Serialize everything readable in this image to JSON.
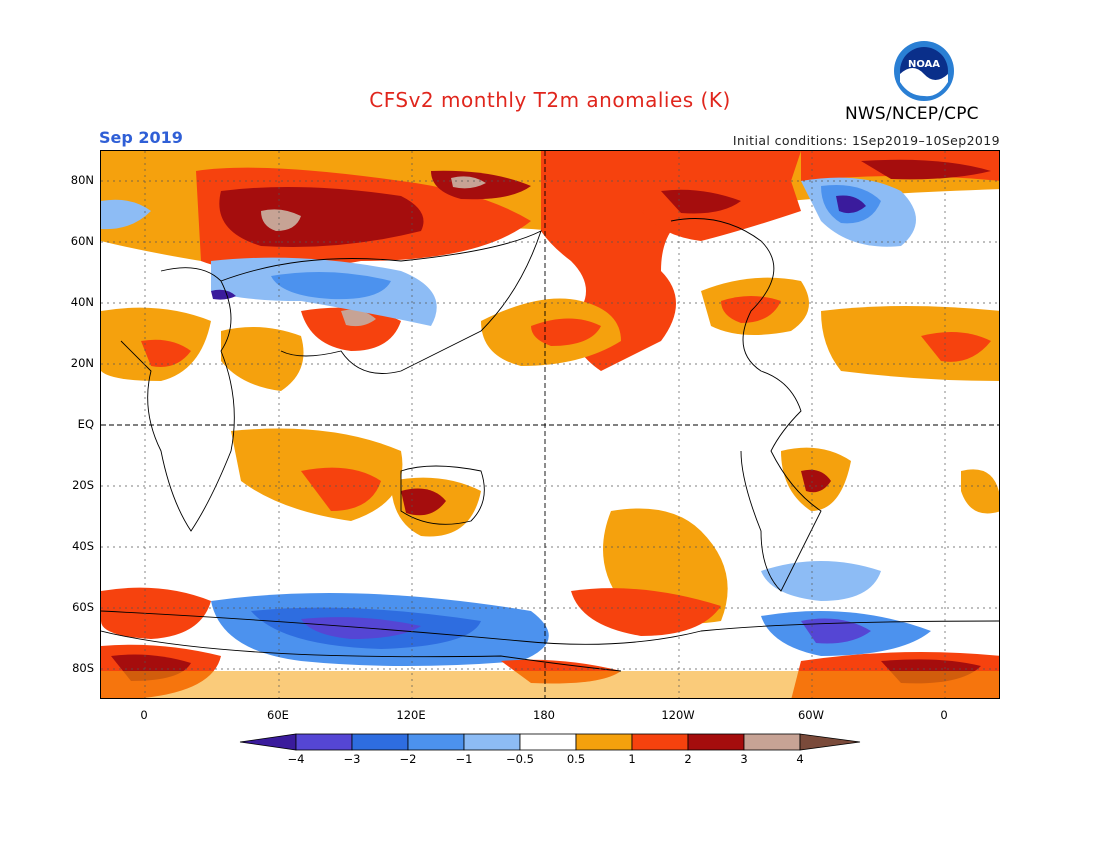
{
  "title": "CFSv2 monthly T2m anomalies (K)",
  "valid_month": "Sep 2019",
  "initial_conditions": "Initial conditions: 1Sep2019–10Sep2019",
  "organization": "NWS/NCEP/CPC",
  "logo": {
    "text": "NOAA",
    "icon": "noaa-logo-icon"
  },
  "map": {
    "lat_labels": [
      "80N",
      "60N",
      "40N",
      "20N",
      "EQ",
      "20S",
      "40S",
      "60S",
      "80S"
    ],
    "lon_labels": [
      "0",
      "60E",
      "120E",
      "180",
      "120W",
      "60W",
      "0"
    ]
  },
  "colorbar": {
    "labels": [
      "−4",
      "−3",
      "−2",
      "−1",
      "−0.5",
      "0.5",
      "1",
      "2",
      "3",
      "4"
    ],
    "colors": [
      "#3a1b9c",
      "#5546d4",
      "#2e6de0",
      "#4c92ee",
      "#8dbcf5",
      "#ffffff",
      "#f5a10d",
      "#f6420e",
      "#a50d0d",
      "#c7a395",
      "#7a4a3a"
    ]
  }
}
